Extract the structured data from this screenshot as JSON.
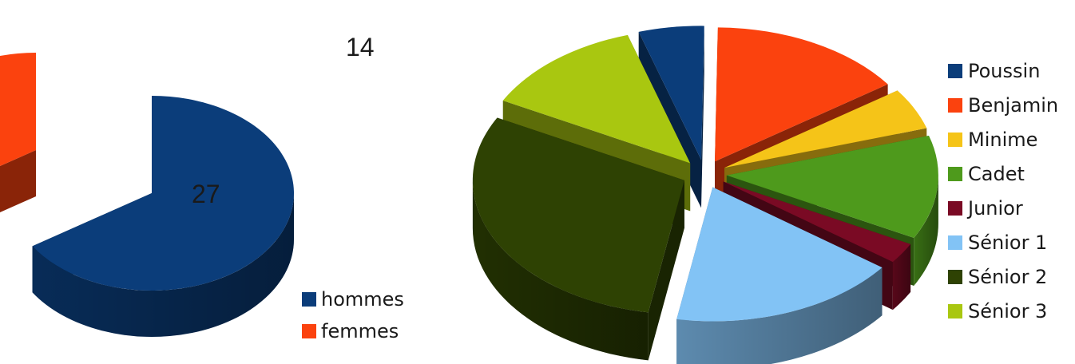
{
  "chart_data": [
    {
      "type": "pie",
      "style": "3d-exploded",
      "categories": [
        "hommes",
        "femmes"
      ],
      "values": [
        27,
        14
      ],
      "data_labels": [
        "27",
        "14"
      ],
      "colors": [
        "#0b3d7a",
        "#fb420e"
      ],
      "legend": {
        "placement": "bottom-right",
        "entries": [
          "hommes",
          "femmes"
        ]
      }
    },
    {
      "type": "pie",
      "style": "3d-exploded",
      "categories": [
        "Poussin",
        "Benjamin",
        "Minime",
        "Cadet",
        "Junior",
        "Sénior 1",
        "Sénior 2",
        "Sénior 3"
      ],
      "values": [
        2,
        6,
        2,
        5,
        1,
        7,
        12,
        5
      ],
      "colors": [
        "#0b3d7a",
        "#fb420e",
        "#f5c418",
        "#4e9a1c",
        "#7a0a24",
        "#82c3f5",
        "#2e4203",
        "#a9c710"
      ],
      "legend": {
        "placement": "right",
        "entries": [
          "Poussin",
          "Benjamin",
          "Minime",
          "Cadet",
          "Junior",
          "Sénior 1",
          "Sénior 2",
          "Sénior 3"
        ]
      }
    }
  ]
}
